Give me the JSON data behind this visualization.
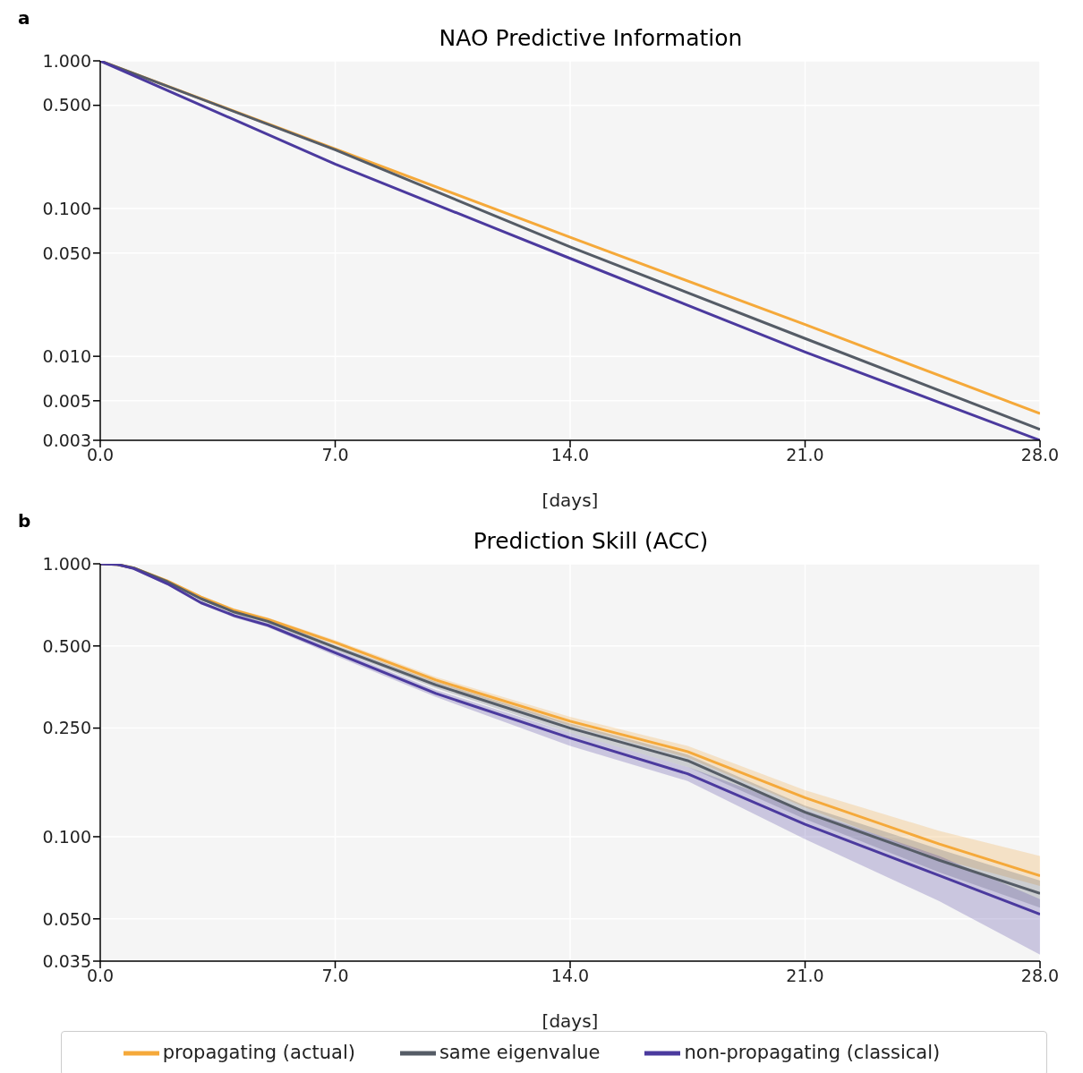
{
  "chart_data": [
    {
      "type": "line",
      "title": "NAO Predictive Information",
      "xlabel": "[days]",
      "annotations": [
        "a"
      ],
      "log": "y",
      "grid": true,
      "legend": false,
      "x": [
        0,
        7,
        14,
        21,
        28
      ],
      "xlim": [
        0,
        28
      ],
      "xticks": [
        {
          "value": 0,
          "label": "0.0"
        },
        {
          "value": 7,
          "label": "7.0"
        },
        {
          "value": 14,
          "label": "14.0"
        },
        {
          "value": 21,
          "label": "21.0"
        },
        {
          "value": 28,
          "label": "28.0"
        }
      ],
      "ylim": [
        0.0027,
        1
      ],
      "yticks": [
        {
          "value": 1,
          "label": "1.000"
        },
        {
          "value": 0.5,
          "label": "0.500"
        },
        {
          "value": 0.1,
          "label": "0.100"
        },
        {
          "value": 0.05,
          "label": "0.050"
        },
        {
          "value": 0.01,
          "label": "0.010"
        },
        {
          "value": 0.005,
          "label": "0.005"
        },
        {
          "value": 0.0027,
          "label": "0.003"
        }
      ],
      "series": [
        {
          "color": "#f5a93a",
          "values": [
            1,
            0.253,
            0.064,
            0.0164,
            0.0041
          ]
        },
        {
          "color": "#555c66",
          "values": [
            1,
            0.25,
            0.055,
            0.0132,
            0.0032
          ]
        },
        {
          "color": "#4b3a9e",
          "values": [
            1,
            0.2,
            0.046,
            0.0107,
            0.0027
          ]
        }
      ]
    },
    {
      "type": "line",
      "title": "Prediction Skill (ACC)",
      "xlabel": "[days]",
      "annotations": [
        "b"
      ],
      "log": "y",
      "grid": true,
      "legend": "bottom",
      "x": [
        0,
        0.5,
        1,
        2,
        3,
        4,
        5,
        7,
        10,
        14,
        17.5,
        21,
        25,
        28
      ],
      "xlim": [
        0,
        28
      ],
      "xticks": [
        {
          "value": 0,
          "label": "0.0"
        },
        {
          "value": 7,
          "label": "7.0"
        },
        {
          "value": 14,
          "label": "14.0"
        },
        {
          "value": 21,
          "label": "21.0"
        },
        {
          "value": 28,
          "label": "28.0"
        }
      ],
      "ylim": [
        0.035,
        1
      ],
      "yticks": [
        {
          "value": 1,
          "label": "1.000"
        },
        {
          "value": 0.5,
          "label": "0.500"
        },
        {
          "value": 0.25,
          "label": "0.250"
        },
        {
          "value": 0.1,
          "label": "0.100"
        },
        {
          "value": 0.05,
          "label": "0.050"
        },
        {
          "value": 0.035,
          "label": "0.035"
        }
      ],
      "series": [
        {
          "name": "propagating (actual)",
          "color": "#f5a93a",
          "values": [
            1,
            0.995,
            0.965,
            0.865,
            0.755,
            0.675,
            0.625,
            0.515,
            0.375,
            0.265,
            0.205,
            0.139,
            0.094,
            0.072
          ],
          "lower": [
            1,
            0.99,
            0.955,
            0.855,
            0.745,
            0.665,
            0.615,
            0.505,
            0.365,
            0.255,
            0.195,
            0.128,
            0.083,
            0.066
          ],
          "upper": [
            1,
            1,
            0.975,
            0.875,
            0.765,
            0.685,
            0.635,
            0.525,
            0.385,
            0.275,
            0.215,
            0.148,
            0.105,
            0.085
          ]
        },
        {
          "name": "same eigenvalue",
          "color": "#555c66",
          "values": [
            1,
            0.995,
            0.965,
            0.86,
            0.745,
            0.665,
            0.615,
            0.494,
            0.36,
            0.25,
            0.19,
            0.123,
            0.082,
            0.062
          ],
          "lower": [
            1,
            0.99,
            0.955,
            0.85,
            0.735,
            0.655,
            0.605,
            0.484,
            0.35,
            0.24,
            0.18,
            0.116,
            0.074,
            0.055
          ],
          "upper": [
            1,
            1,
            0.975,
            0.87,
            0.755,
            0.675,
            0.625,
            0.504,
            0.37,
            0.26,
            0.2,
            0.13,
            0.09,
            0.069
          ]
        },
        {
          "name": "non-propagating (classical)",
          "color": "#4b3a9e",
          "values": [
            1,
            0.995,
            0.96,
            0.845,
            0.72,
            0.645,
            0.595,
            0.472,
            0.335,
            0.23,
            0.17,
            0.111,
            0.072,
            0.052
          ],
          "lower": [
            1,
            0.99,
            0.95,
            0.835,
            0.71,
            0.635,
            0.585,
            0.46,
            0.325,
            0.215,
            0.16,
            0.098,
            0.058,
            0.037
          ],
          "upper": [
            1,
            1,
            0.97,
            0.855,
            0.73,
            0.655,
            0.605,
            0.484,
            0.345,
            0.24,
            0.18,
            0.125,
            0.085,
            0.059
          ]
        }
      ]
    }
  ]
}
